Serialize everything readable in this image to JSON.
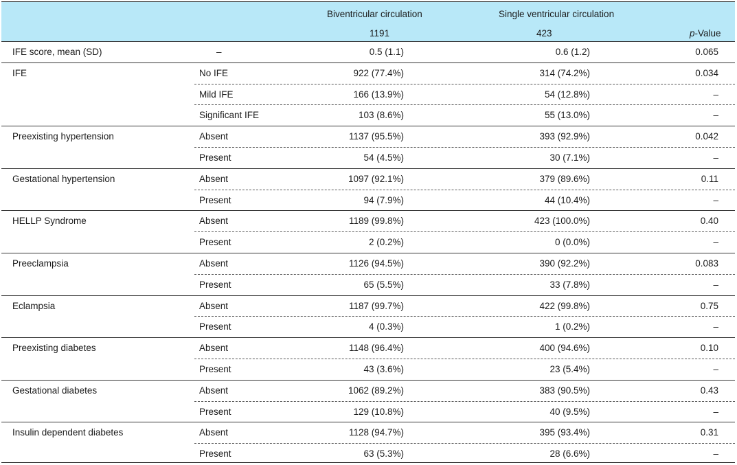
{
  "header": {
    "group1_label": "Biventricular circulation",
    "group1_n": "1191",
    "group2_label": "Single ventricular circulation",
    "group2_n": "423",
    "pvalue_p": "p",
    "pvalue_rest": "-Value"
  },
  "first_row": {
    "variable": "IFE score, mean (SD)",
    "level": "–",
    "group1": "0.5 (1.1)",
    "group2": "0.6 (1.2)",
    "pvalue": "0.065"
  },
  "groups": [
    {
      "variable": "IFE",
      "rows": [
        {
          "level": "No IFE",
          "group1": "922 (77.4%)",
          "group2": "314 (74.2%)",
          "pvalue": "0.034"
        },
        {
          "level": "Mild IFE",
          "group1": "166 (13.9%)",
          "group2": "54 (12.8%)",
          "pvalue": "–"
        },
        {
          "level": "Significant IFE",
          "group1": "103 (8.6%)",
          "group2": "55 (13.0%)",
          "pvalue": "–"
        }
      ]
    },
    {
      "variable": "Preexisting hypertension",
      "rows": [
        {
          "level": "Absent",
          "group1": "1137 (95.5%)",
          "group2": "393 (92.9%)",
          "pvalue": "0.042"
        },
        {
          "level": "Present",
          "group1": "54 (4.5%)",
          "group2": "30 (7.1%)",
          "pvalue": "–"
        }
      ]
    },
    {
      "variable": "Gestational hypertension",
      "rows": [
        {
          "level": "Absent",
          "group1": "1097 (92.1%)",
          "group2": "379 (89.6%)",
          "pvalue": "0.11"
        },
        {
          "level": "Present",
          "group1": "94 (7.9%)",
          "group2": "44 (10.4%)",
          "pvalue": "–"
        }
      ]
    },
    {
      "variable": "HELLP Syndrome",
      "rows": [
        {
          "level": "Absent",
          "group1": "1189 (99.8%)",
          "group2": "423 (100.0%)",
          "pvalue": "0.40"
        },
        {
          "level": "Present",
          "group1": "2 (0.2%)",
          "group2": "0 (0.0%)",
          "pvalue": "–"
        }
      ]
    },
    {
      "variable": "Preeclampsia",
      "rows": [
        {
          "level": "Absent",
          "group1": "1126 (94.5%)",
          "group2": "390 (92.2%)",
          "pvalue": "0.083"
        },
        {
          "level": "Present",
          "group1": "65 (5.5%)",
          "group2": "33 (7.8%)",
          "pvalue": "–"
        }
      ]
    },
    {
      "variable": "Eclampsia",
      "rows": [
        {
          "level": "Absent",
          "group1": "1187 (99.7%)",
          "group2": "422 (99.8%)",
          "pvalue": "0.75"
        },
        {
          "level": "Present",
          "group1": "4 (0.3%)",
          "group2": "1 (0.2%)",
          "pvalue": "–"
        }
      ]
    },
    {
      "variable": "Preexisting diabetes",
      "rows": [
        {
          "level": "Absent",
          "group1": "1148 (96.4%)",
          "group2": "400 (94.6%)",
          "pvalue": "0.10"
        },
        {
          "level": "Present",
          "group1": "43 (3.6%)",
          "group2": "23 (5.4%)",
          "pvalue": "–"
        }
      ]
    },
    {
      "variable": "Gestational diabetes",
      "rows": [
        {
          "level": "Absent",
          "group1": "1062 (89.2%)",
          "group2": "383 (90.5%)",
          "pvalue": "0.43"
        },
        {
          "level": "Present",
          "group1": "129 (10.8%)",
          "group2": "40 (9.5%)",
          "pvalue": "–"
        }
      ]
    },
    {
      "variable": "Insulin dependent diabetes",
      "rows": [
        {
          "level": "Absent",
          "group1": "1128 (94.7%)",
          "group2": "395 (93.4%)",
          "pvalue": "0.31"
        },
        {
          "level": "Present",
          "group1": "63 (5.3%)",
          "group2": "28 (6.6%)",
          "pvalue": "–"
        }
      ]
    }
  ]
}
